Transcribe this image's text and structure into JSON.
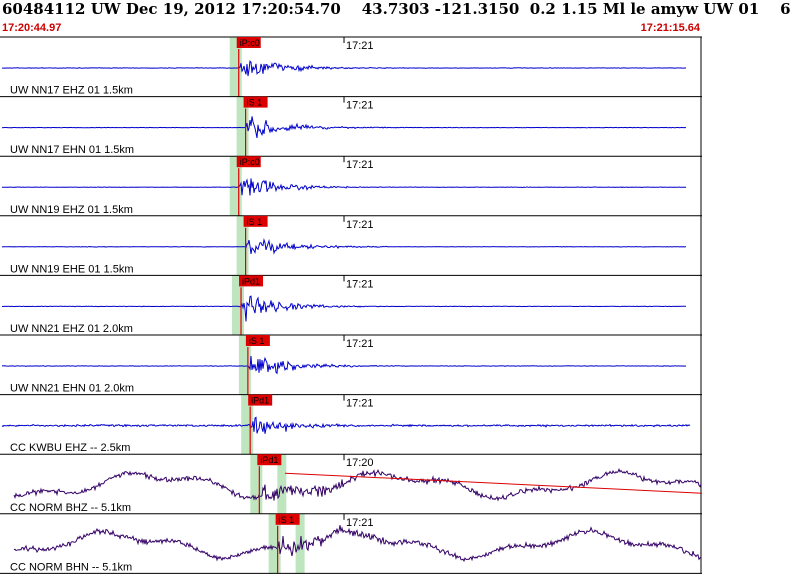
{
  "header": {
    "title": "60484112 UW Dec 19, 2012 17:20:54.70    43.7303 -121.3150  0.2 1.15 Ml le amyw UW 01    6",
    "start_time": "17:20:44.97",
    "end_time": "17:21:15.64"
  },
  "colors": {
    "trace_blue": "#0000cc",
    "trace_purple": "#330066",
    "pick_red": "#dd0000",
    "window_green": "#bfe5bf",
    "grid_black": "#000000"
  },
  "chart_data": {
    "type": "line",
    "title": "60484112 UW Dec 19, 2012 17:20:54.70    43.7303 -121.3150  0.2 1.15 Ml le amyw UW 01    6",
    "time_range": [
      "17:20:44.97",
      "17:21:15.64"
    ],
    "series": [
      {
        "name": "UW NN17 EHZ 01 1.5km",
        "time_label": "17:21",
        "pick": "iP:c0",
        "pick_time": "17:20:55.4",
        "color": "#0000cc"
      },
      {
        "name": "UW NN17 EHN 01 1.5km",
        "time_label": "17:21",
        "pick": "iS 1",
        "pick_time": "17:20:55.7",
        "color": "#0000cc"
      },
      {
        "name": "UW NN19 EHZ 01 1.5km",
        "time_label": "17:21",
        "pick": "iP:c0",
        "pick_time": "17:20:55.4",
        "color": "#0000cc"
      },
      {
        "name": "UW NN19 EHE 01 1.5km",
        "time_label": "17:21",
        "pick": "iS 1",
        "pick_time": "17:20:55.7",
        "color": "#0000cc"
      },
      {
        "name": "UW NN21 EHZ 01 2.0km",
        "time_label": "17:21",
        "pick": "iPd1",
        "pick_time": "17:20:55.5",
        "color": "#0000cc"
      },
      {
        "name": "UW NN21 EHN 01 2.0km",
        "time_label": "17:21",
        "pick": "iS 1",
        "pick_time": "17:20:55.8",
        "color": "#0000cc"
      },
      {
        "name": "CC KWBU EHZ -- 2.5km",
        "time_label": "17:21",
        "pick": "iPd1",
        "pick_time": "17:20:55.9",
        "color": "#0000cc"
      },
      {
        "name": "CC NORM BHZ -- 5.1km",
        "time_label": "17:20",
        "pick": "iPd1",
        "pick_time": "17:20:56.3",
        "color": "#330066"
      },
      {
        "name": "CC NORM BHN -- 5.1km",
        "time_label": "17:21",
        "pick": "iS 1",
        "pick_time": "17:20:57.1",
        "color": "#330066"
      }
    ]
  }
}
